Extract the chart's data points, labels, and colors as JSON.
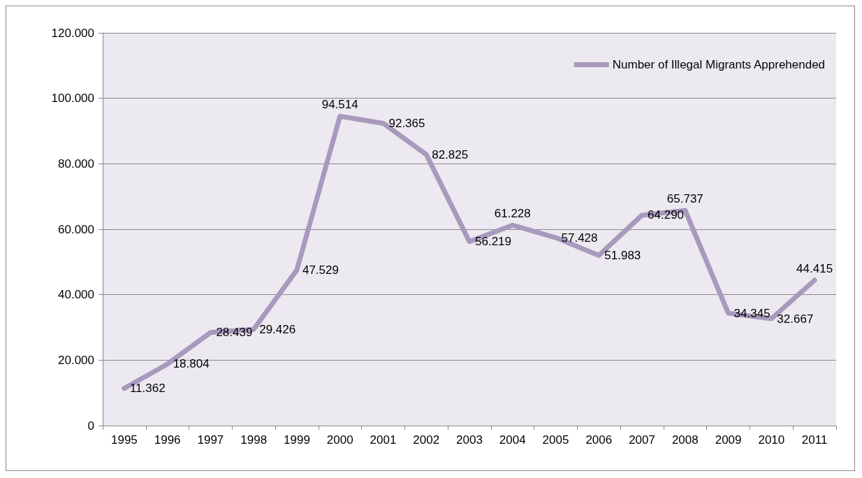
{
  "chart_data": {
    "type": "line",
    "categories": [
      "1995",
      "1996",
      "1997",
      "1998",
      "1999",
      "2000",
      "2001",
      "2002",
      "2003",
      "2004",
      "2005",
      "2006",
      "2007",
      "2008",
      "2009",
      "2010",
      "2011"
    ],
    "series": [
      {
        "name": "Number of Illegal Migrants Apprehended",
        "color": "#a899bd",
        "values": [
          11362,
          18804,
          28439,
          29426,
          47529,
          94514,
          92365,
          82825,
          56219,
          61228,
          57428,
          51983,
          64290,
          65737,
          34345,
          32667,
          44415
        ],
        "value_labels": [
          "11.362",
          "18.804",
          "28.439",
          "29.426",
          "47.529",
          "94.514",
          "92.365",
          "82.825",
          "56.219",
          "61.228",
          "57.428",
          "51.983",
          "64.290",
          "65.737",
          "34.345",
          "32.667",
          "44.415"
        ]
      }
    ],
    "ylim": [
      0,
      120000
    ],
    "yticks": [
      0,
      {
        "value": 20000,
        "label": "20.000"
      },
      {
        "value": 40000,
        "label": "40.000"
      },
      {
        "value": 60000,
        "label": "60.000"
      },
      {
        "value": 80000,
        "label": "80.000"
      },
      {
        "value": 100000,
        "label": "100.000"
      },
      {
        "value": 120000,
        "label": "120.000"
      }
    ],
    "grid": "y",
    "legend": "top right",
    "marker": "none",
    "line_style": "solid"
  }
}
